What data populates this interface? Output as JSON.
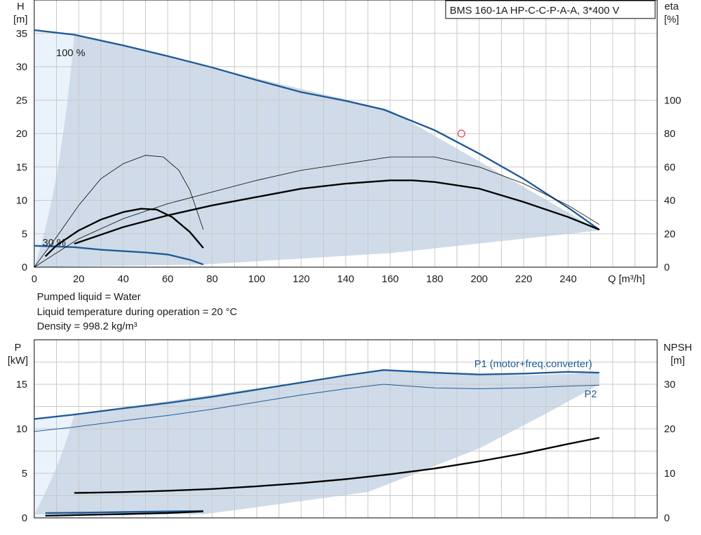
{
  "model_box": "BMS 160-1A HP-C-C-P-A-A, 3*400 V",
  "info_lines": [
    "Pumped liquid = Water",
    "Liquid temperature during operation = 20 °C",
    "Density = 998.2 kg/m³"
  ],
  "colors": {
    "curve_blue": "#1f5a96",
    "area_fill": "#cfdbe8",
    "area_light": "#eaf2fb",
    "black": "#000000",
    "grid": "#c8c8c8",
    "duty_point": "#e04040"
  },
  "chart_data": [
    {
      "type": "line",
      "title": "",
      "xlabel": "Q [m³/h]",
      "ylabel": "H\n[m]",
      "y2label": "eta\n[%]",
      "xlim": [
        0,
        280
      ],
      "ylim": [
        0,
        40
      ],
      "y2lim": [
        0,
        160
      ],
      "x_ticks": [
        0,
        20,
        40,
        60,
        80,
        100,
        120,
        140,
        160,
        180,
        200,
        220,
        240
      ],
      "y_ticks": [
        0,
        5,
        10,
        15,
        20,
        25,
        30,
        35
      ],
      "y2_ticks": [
        0,
        20,
        40,
        60,
        80,
        100
      ],
      "curve_labels": [
        "100 %",
        "30 %"
      ],
      "operating_area_upper": [
        [
          0,
          35.5
        ],
        [
          18,
          34.8
        ],
        [
          160,
          23.5
        ],
        [
          254,
          5.5
        ]
      ],
      "operating_area_lower": [
        [
          76,
          0.4
        ],
        [
          160,
          2.1
        ],
        [
          254,
          5.5
        ]
      ],
      "series": [
        {
          "role": "H 100%",
          "axis": "y",
          "color": "#1f5a96",
          "points": [
            [
              0,
              35.5
            ],
            [
              18,
              34.8
            ],
            [
              40,
              33.2
            ],
            [
              60,
              31.6
            ],
            [
              80,
              29.9
            ],
            [
              100,
              28.0
            ],
            [
              120,
              26.2
            ],
            [
              140,
              24.9
            ],
            [
              157,
              23.6
            ],
            [
              180,
              20.5
            ],
            [
              200,
              17.0
            ],
            [
              220,
              13.2
            ],
            [
              240,
              8.9
            ],
            [
              254,
              5.6
            ]
          ]
        },
        {
          "role": "H 30%",
          "axis": "y",
          "color": "#1f5a96",
          "points": [
            [
              0,
              3.2
            ],
            [
              18,
              3.0
            ],
            [
              30,
              2.6
            ],
            [
              40,
              2.4
            ],
            [
              50,
              2.2
            ],
            [
              60,
              1.9
            ],
            [
              70,
              1.1
            ],
            [
              76,
              0.4
            ]
          ]
        },
        {
          "role": "eta 100%",
          "axis": "y2",
          "color": "#000000",
          "points": [
            [
              18,
              14
            ],
            [
              40,
              24
            ],
            [
              60,
              31
            ],
            [
              80,
              37
            ],
            [
              100,
              42
            ],
            [
              120,
              47
            ],
            [
              140,
              50
            ],
            [
              160,
              52
            ],
            [
              170,
              52
            ],
            [
              180,
              51
            ],
            [
              200,
              47
            ],
            [
              220,
              39
            ],
            [
              240,
              30
            ],
            [
              254,
              22.5
            ]
          ]
        },
        {
          "role": "eta 30%",
          "axis": "y2",
          "color": "#000000",
          "points": [
            [
              5,
              6.5
            ],
            [
              10,
              13
            ],
            [
              20,
              22
            ],
            [
              30,
              28.5
            ],
            [
              40,
              33
            ],
            [
              48,
              35
            ],
            [
              55,
              34.5
            ],
            [
              62,
              30
            ],
            [
              70,
              21
            ],
            [
              76,
              11.5
            ]
          ]
        },
        {
          "role": "eta thin 100%",
          "axis": "y2",
          "color": "#000000",
          "points": [
            [
              0,
              0
            ],
            [
              20,
              17
            ],
            [
              40,
              29
            ],
            [
              60,
              38
            ],
            [
              80,
              45
            ],
            [
              100,
              52
            ],
            [
              120,
              58
            ],
            [
              140,
              62
            ],
            [
              160,
              66
            ],
            [
              180,
              66
            ],
            [
              200,
              60
            ],
            [
              220,
              50
            ],
            [
              240,
              37
            ],
            [
              254,
              25.5
            ]
          ]
        },
        {
          "role": "eta thin 30%",
          "axis": "y2",
          "color": "#000000",
          "points": [
            [
              0,
              0
            ],
            [
              10,
              18
            ],
            [
              20,
              37
            ],
            [
              30,
              53
            ],
            [
              40,
              62
            ],
            [
              50,
              67
            ],
            [
              58,
              66
            ],
            [
              65,
              58
            ],
            [
              70,
              46
            ],
            [
              76,
              22.5
            ]
          ]
        }
      ],
      "duty_point": {
        "Q": 192,
        "H": 20
      }
    },
    {
      "type": "line",
      "title": "",
      "xlabel": "",
      "ylabel": "P\n[kW]",
      "y2label": "NPSH\n[m]",
      "xlim": [
        0,
        280
      ],
      "ylim": [
        0,
        20
      ],
      "y2lim": [
        0,
        40
      ],
      "y_ticks": [
        0,
        5,
        10,
        15
      ],
      "y2_ticks": [
        0,
        10,
        20,
        30
      ],
      "operating_area_upper": [
        [
          0,
          11.1
        ],
        [
          18,
          11.6
        ],
        [
          157,
          16.6
        ],
        [
          220,
          16.0
        ],
        [
          254,
          16.3
        ]
      ],
      "operating_area_lower": [
        [
          76,
          0.4
        ],
        [
          150,
          2.9
        ],
        [
          200,
          7.8
        ],
        [
          230,
          11.7
        ],
        [
          254,
          15.0
        ]
      ],
      "series": [
        {
          "name": "P1 (motor+freq.converter)",
          "axis": "y",
          "color": "#1f5a96",
          "points": [
            [
              0,
              11.1
            ],
            [
              18,
              11.6
            ],
            [
              40,
              12.3
            ],
            [
              60,
              12.9
            ],
            [
              80,
              13.6
            ],
            [
              100,
              14.4
            ],
            [
              120,
              15.2
            ],
            [
              140,
              16.0
            ],
            [
              157,
              16.6
            ],
            [
              180,
              16.3
            ],
            [
              200,
              16.1
            ],
            [
              220,
              16.2
            ],
            [
              240,
              16.4
            ],
            [
              254,
              16.3
            ]
          ]
        },
        {
          "name": "P2",
          "axis": "y",
          "color": "#1f5a96",
          "points": [
            [
              0,
              9.7
            ],
            [
              18,
              10.2
            ],
            [
              40,
              10.9
            ],
            [
              60,
              11.5
            ],
            [
              80,
              12.2
            ],
            [
              100,
              13.0
            ],
            [
              120,
              13.8
            ],
            [
              140,
              14.5
            ],
            [
              157,
              15.0
            ],
            [
              180,
              14.6
            ],
            [
              200,
              14.5
            ],
            [
              220,
              14.6
            ],
            [
              240,
              14.8
            ],
            [
              254,
              14.9
            ]
          ]
        },
        {
          "role": "NPSH",
          "axis": "y2",
          "color": "#000000",
          "points": [
            [
              18,
              5.6
            ],
            [
              40,
              5.8
            ],
            [
              60,
              6.1
            ],
            [
              80,
              6.5
            ],
            [
              100,
              7.1
            ],
            [
              120,
              7.8
            ],
            [
              140,
              8.7
            ],
            [
              160,
              9.8
            ],
            [
              180,
              11.1
            ],
            [
              200,
              12.7
            ],
            [
              220,
              14.5
            ],
            [
              240,
              16.6
            ],
            [
              254,
              18.0
            ]
          ]
        },
        {
          "role": "P1 30%",
          "axis": "y",
          "color": "#1f5a96",
          "points": [
            [
              5,
              0.55
            ],
            [
              20,
              0.58
            ],
            [
              40,
              0.65
            ],
            [
              60,
              0.72
            ],
            [
              76,
              0.78
            ]
          ]
        },
        {
          "role": "P2 30%",
          "axis": "y",
          "color": "#000000",
          "points": [
            [
              5,
              0.25
            ],
            [
              20,
              0.32
            ],
            [
              40,
              0.42
            ],
            [
              60,
              0.55
            ],
            [
              76,
              0.72
            ]
          ]
        }
      ]
    }
  ]
}
